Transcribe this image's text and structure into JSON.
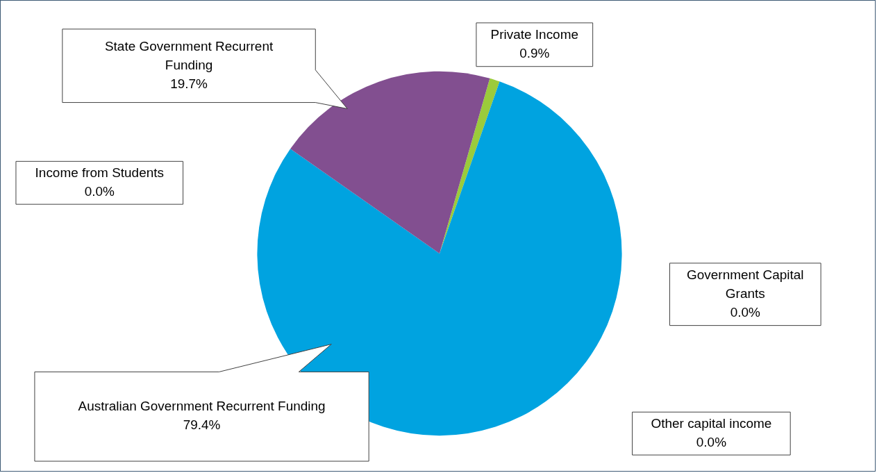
{
  "chart_data": {
    "type": "pie",
    "categories": [
      "Private Income",
      "Government Capital Grants",
      "Other capital income",
      "Australian Government Recurrent Funding",
      "Income from Students",
      "State Government Recurrent Funding"
    ],
    "values": [
      0.9,
      0,
      0,
      79.4,
      0,
      19.7
    ],
    "colors": [
      "#9bcb3b",
      "#f5a623",
      "#7ab8d6",
      "#00a3e0",
      "#c0504d",
      "#824f90"
    ],
    "value_labels": [
      "0.9%",
      "0.0%",
      "0.0%",
      "79.4%",
      "0.0%",
      "19.7%"
    ]
  }
}
